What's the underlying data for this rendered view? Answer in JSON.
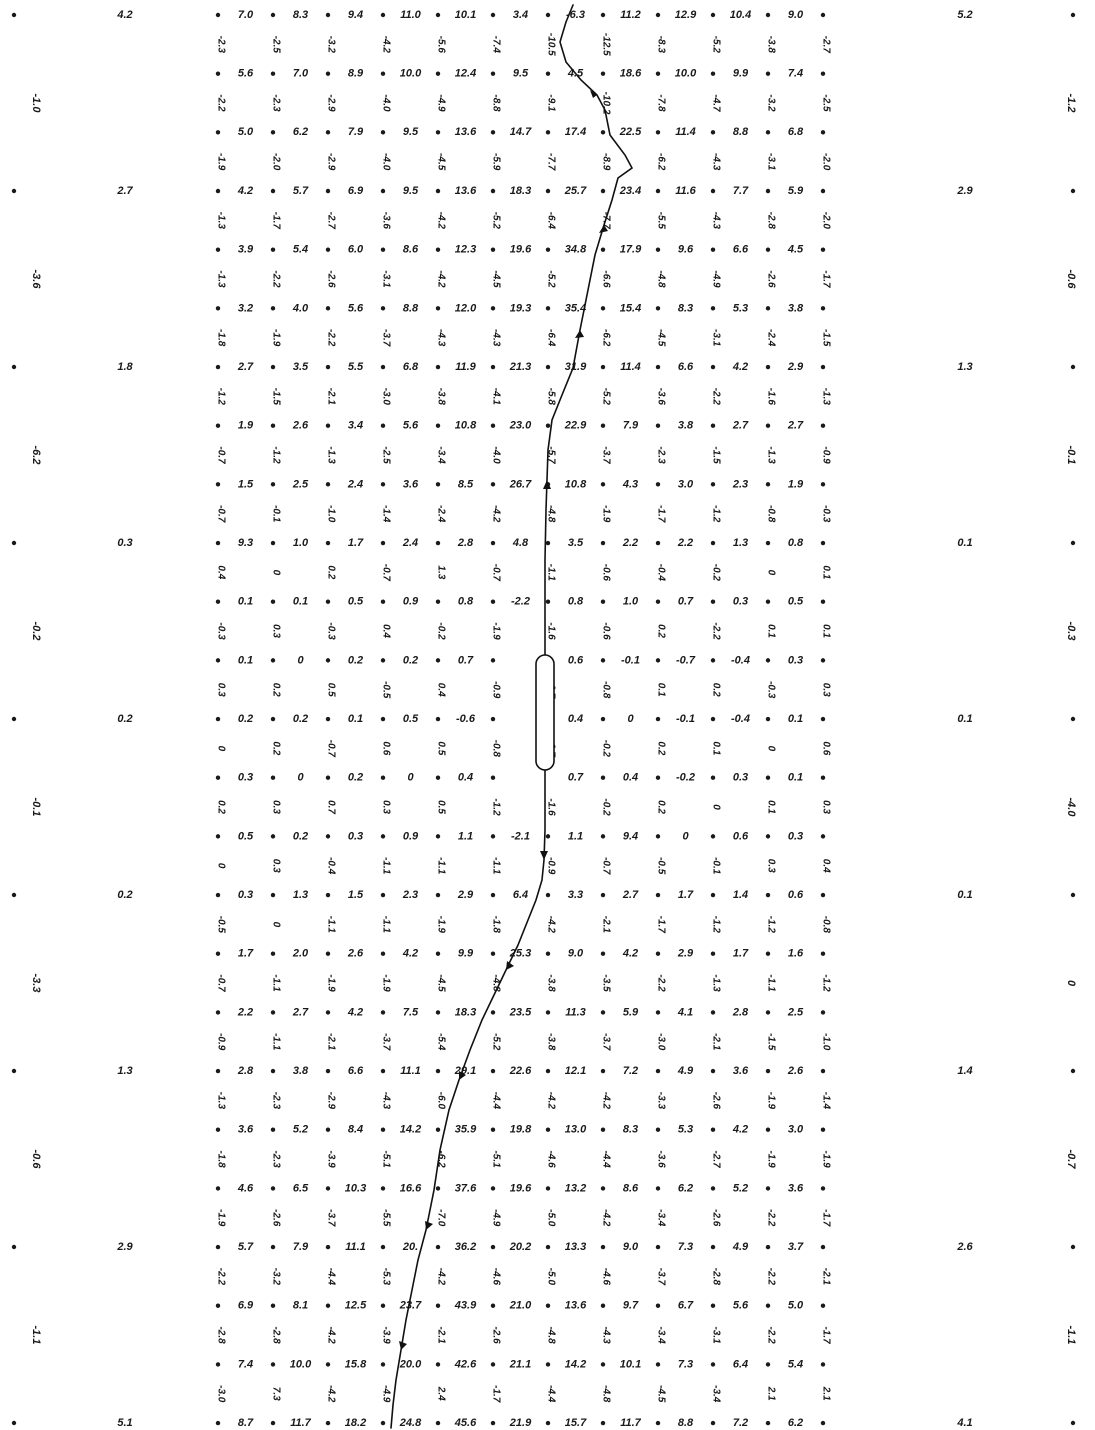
{
  "grid": {
    "h_rows": [
      [
        "7.0",
        "8.3",
        "9.4",
        "11.0",
        "10.1",
        "3.4",
        "-6.3",
        "11.2",
        "12.9",
        "10.4",
        "9.0"
      ],
      [
        "5.6",
        "7.0",
        "8.9",
        "10.0",
        "12.4",
        "9.5",
        "4.5",
        "18.6",
        "10.0",
        "9.9",
        "7.4"
      ],
      [
        "5.0",
        "6.2",
        "7.9",
        "9.5",
        "13.6",
        "14.7",
        "17.4",
        "22.5",
        "11.4",
        "8.8",
        "6.8"
      ],
      [
        "4.2",
        "5.7",
        "6.9",
        "9.5",
        "13.6",
        "18.3",
        "25.7",
        "23.4",
        "11.6",
        "7.7",
        "5.9"
      ],
      [
        "3.9",
        "5.4",
        "6.0",
        "8.6",
        "12.3",
        "19.6",
        "34.8",
        "17.9",
        "9.6",
        "6.6",
        "4.5"
      ],
      [
        "3.2",
        "4.0",
        "5.6",
        "8.8",
        "12.0",
        "19.3",
        "35.4",
        "15.4",
        "8.3",
        "5.3",
        "3.8"
      ],
      [
        "2.7",
        "3.5",
        "5.5",
        "6.8",
        "11.9",
        "21.3",
        "31.9",
        "11.4",
        "6.6",
        "4.2",
        "2.9"
      ],
      [
        "1.9",
        "2.6",
        "3.4",
        "5.6",
        "10.8",
        "23.0",
        "22.9",
        "7.9",
        "3.8",
        "2.7",
        "2.7"
      ],
      [
        "1.5",
        "2.5",
        "2.4",
        "3.6",
        "8.5",
        "26.7",
        "10.8",
        "4.3",
        "3.0",
        "2.3",
        "1.9"
      ],
      [
        "9.3",
        "1.0",
        "1.7",
        "2.4",
        "2.8",
        "4.8",
        "3.5",
        "2.2",
        "2.2",
        "1.3",
        "0.8"
      ],
      [
        "0.1",
        "0.1",
        "0.5",
        "0.9",
        "0.8",
        "-2.2",
        "0.8",
        "1.0",
        "0.7",
        "0.3",
        "0.5"
      ],
      [
        "0.1",
        "0",
        "0.2",
        "0.2",
        "0.7",
        "",
        "0.6",
        "-0.1",
        "-0.7",
        "-0.4",
        "0.3"
      ],
      [
        "0.2",
        "0.2",
        "0.1",
        "0.5",
        "-0.6",
        "",
        "0.4",
        "0",
        "-0.1",
        "-0.4",
        "0.1"
      ],
      [
        "0.3",
        "0",
        "0.2",
        "0",
        "0.4",
        "",
        "0.7",
        "0.4",
        "-0.2",
        "0.3",
        "0.1"
      ],
      [
        "0.5",
        "0.2",
        "0.3",
        "0.9",
        "1.1",
        "-2.1",
        "1.1",
        "9.4",
        "0",
        "0.6",
        "0.3"
      ],
      [
        "0.3",
        "1.3",
        "1.5",
        "2.3",
        "2.9",
        "6.4",
        "3.3",
        "2.7",
        "1.7",
        "1.4",
        "0.6"
      ],
      [
        "1.7",
        "2.0",
        "2.6",
        "4.2",
        "9.9",
        "25.3",
        "9.0",
        "4.2",
        "2.9",
        "1.7",
        "1.6"
      ],
      [
        "2.2",
        "2.7",
        "4.2",
        "7.5",
        "18.3",
        "23.5",
        "11.3",
        "5.9",
        "4.1",
        "2.8",
        "2.5"
      ],
      [
        "2.8",
        "3.8",
        "6.6",
        "11.1",
        "29.1",
        "22.6",
        "12.1",
        "7.2",
        "4.9",
        "3.6",
        "2.6"
      ],
      [
        "3.6",
        "5.2",
        "8.4",
        "14.2",
        "35.9",
        "19.8",
        "13.0",
        "8.3",
        "5.3",
        "4.2",
        "3.0"
      ],
      [
        "4.6",
        "6.5",
        "10.3",
        "16.6",
        "37.6",
        "19.6",
        "13.2",
        "8.6",
        "6.2",
        "5.2",
        "3.6"
      ],
      [
        "5.7",
        "7.9",
        "11.1",
        "20.",
        "36.2",
        "20.2",
        "13.3",
        "9.0",
        "7.3",
        "4.9",
        "3.7"
      ],
      [
        "6.9",
        "8.1",
        "12.5",
        "23.7",
        "43.9",
        "21.0",
        "13.6",
        "9.7",
        "6.7",
        "5.6",
        "5.0"
      ],
      [
        "7.4",
        "10.0",
        "15.8",
        "20.0",
        "42.6",
        "21.1",
        "14.2",
        "10.1",
        "7.3",
        "6.4",
        "5.4"
      ],
      [
        "8.7",
        "11.7",
        "18.2",
        "24.8",
        "45.6",
        "21.9",
        "15.7",
        "11.7",
        "8.8",
        "7.2",
        "6.2"
      ]
    ],
    "v_rows": [
      [
        "-2.3",
        "-2.5",
        "-3.2",
        "-4.2",
        "-5.6",
        "-7.4",
        "-10.5",
        "-12.5",
        "-8.3",
        "-5.2",
        "-3.8",
        "-2.7"
      ],
      [
        "-2.2",
        "-2.3",
        "-2.9",
        "-4.0",
        "-4.9",
        "-8.8",
        "-9.1",
        "-10.2",
        "-7.8",
        "-4.7",
        "-3.2",
        "-2.5"
      ],
      [
        "-1.9",
        "-2.0",
        "-2.9",
        "-4.0",
        "-4.5",
        "-5.9",
        "-7.7",
        "-8.9",
        "-6.2",
        "-4.3",
        "-3.1",
        "-2.0"
      ],
      [
        "-1.3",
        "-1.7",
        "-2.7",
        "-3.6",
        "-4.2",
        "-5.2",
        "-6.4",
        "-7.7",
        "-5.5",
        "-4.3",
        "-2.8",
        "-2.0"
      ],
      [
        "-1.3",
        "-2.2",
        "-2.6",
        "-3.1",
        "-4.2",
        "-4.5",
        "-5.2",
        "-6.6",
        "-4.8",
        "-4.9",
        "-2.6",
        "-1.7"
      ],
      [
        "-1.8",
        "-1.9",
        "-2.2",
        "-3.7",
        "-4.3",
        "-4.3",
        "-6.4",
        "-6.2",
        "-4.5",
        "-3.1",
        "-2.4",
        "-1.5"
      ],
      [
        "-1.2",
        "-1.5",
        "-2.1",
        "-3.0",
        "-3.8",
        "-4.1",
        "-5.8",
        "-5.2",
        "-3.6",
        "-2.2",
        "-1.6",
        "-1.3"
      ],
      [
        "-0.7",
        "-1.2",
        "-1.3",
        "-2.5",
        "-3.4",
        "-4.0",
        "-5.7",
        "-3.7",
        "-2.3",
        "-1.5",
        "-1.3",
        "-0.9"
      ],
      [
        "-0.7",
        "-0.1",
        "-1.0",
        "-1.4",
        "-2.4",
        "-4.2",
        "-4.8",
        "-1.9",
        "-1.7",
        "-1.2",
        "-0.8",
        "-0.3"
      ],
      [
        "0.4",
        "0",
        "0.2",
        "-0.7",
        "1.3",
        "-0.7",
        "-1.1",
        "-0.6",
        "-0.4",
        "-0.2",
        "0",
        "0.1"
      ],
      [
        "-0.3",
        "0.3",
        "-0.3",
        "0.4",
        "-0.2",
        "-1.9",
        "-1.6",
        "-0.6",
        "0.2",
        "-2.2",
        "0.1",
        "0.1"
      ],
      [
        "0.3",
        "0.2",
        "0.5",
        "-0.5",
        "0.4",
        "-0.9",
        "-0.7",
        "-0.8",
        "0.1",
        "0.2",
        "-0.3",
        "0.3"
      ],
      [
        "0",
        "0.2",
        "-0.7",
        "0.6",
        "0.5",
        "-0.8",
        "-0.7",
        "-0.2",
        "0.2",
        "0.1",
        "0",
        "0.6"
      ],
      [
        "0.2",
        "0.3",
        "0.7",
        "0.3",
        "0.5",
        "-1.2",
        "-1.6",
        "-0.2",
        "0.2",
        "0",
        "0.1",
        "0.3"
      ],
      [
        "0",
        "0.3",
        "-0.4",
        "-1.1",
        "-1.1",
        "-1.1",
        "-0.9",
        "-0.7",
        "-0.5",
        "-0.1",
        "0.3",
        "0.4"
      ],
      [
        "-0.5",
        "0",
        "-1.1",
        "-1.1",
        "-1.9",
        "-1.8",
        "-4.2",
        "-2.1",
        "-1.7",
        "-1.2",
        "-1.2",
        "-0.8"
      ],
      [
        "-0.7",
        "-1.1",
        "-1.9",
        "-1.9",
        "-4.5",
        "-4.8",
        "-3.8",
        "-3.5",
        "-2.2",
        "-1.3",
        "-1.1",
        "-1.2"
      ],
      [
        "-0.9",
        "-1.1",
        "-2.1",
        "-3.7",
        "-5.4",
        "-5.2",
        "-3.8",
        "-3.7",
        "-3.0",
        "-2.1",
        "-1.5",
        "-1.0"
      ],
      [
        "-1.3",
        "-2.3",
        "-2.9",
        "-4.3",
        "-6.0",
        "-4.4",
        "-4.2",
        "-4.2",
        "-3.3",
        "-2.6",
        "-1.9",
        "-1.4"
      ],
      [
        "-1.8",
        "-2.3",
        "-3.9",
        "-5.1",
        "-6.2",
        "-5.1",
        "-4.6",
        "-4.4",
        "-3.6",
        "-2.7",
        "-1.9",
        "-1.9"
      ],
      [
        "-1.9",
        "-2.6",
        "-3.7",
        "-5.5",
        "-7.0",
        "-4.9",
        "-5.0",
        "-4.2",
        "-3.4",
        "-2.6",
        "-2.2",
        "-1.7"
      ],
      [
        "-2.2",
        "-3.2",
        "-4.4",
        "-5.3",
        "-4.2",
        "-4.6",
        "-5.0",
        "-4.6",
        "-3.7",
        "-2.8",
        "-2.2",
        "-2.1"
      ],
      [
        "-2.8",
        "-2.8",
        "-4.2",
        "-3.9",
        "-2.1",
        "-2.6",
        "-4.8",
        "-4.3",
        "-3.4",
        "-3.1",
        "-2.2",
        "-1.7"
      ],
      [
        "-3.0",
        "7.3",
        "-4.2",
        "-4.9",
        "2.4",
        "-1.7",
        "-4.4",
        "-4.8",
        "-4.5",
        "-3.4",
        "2.1",
        "2.1"
      ]
    ],
    "outer_left_h": [
      "4.2",
      "2.7",
      "1.8",
      "0.3",
      "0.2",
      "0.2",
      "1.3",
      "2.9",
      "5.1"
    ],
    "outer_left_v": [
      "-1.0",
      "-3.6",
      "-6.2",
      "-0.2",
      "-0.1",
      "-3.3",
      "-0.6",
      "-1.1"
    ],
    "outer_right_h": [
      "5.2",
      "2.9",
      "1.3",
      "0.1",
      "0.1",
      "0.1",
      "1.4",
      "2.6",
      "4.1"
    ],
    "outer_right_v": [
      "-1.2",
      "-0.6",
      "-0.1",
      "-0.3",
      "-4.0",
      "0",
      "-0.7",
      "-1.1"
    ]
  }
}
